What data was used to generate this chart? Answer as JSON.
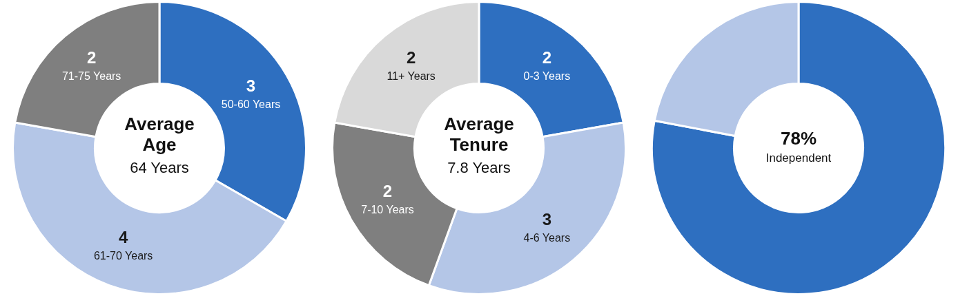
{
  "chart_data": [
    {
      "type": "donut",
      "categories": [
        "50-60 Years",
        "61-70 Years",
        "71-75 Years"
      ],
      "values": [
        3,
        4,
        2
      ],
      "colors": [
        "#2e6fc0",
        "#b4c6e7",
        "#7f7f7f"
      ],
      "data_labels": true,
      "annotations": [
        "Average Age",
        "64 Years"
      ]
    },
    {
      "type": "donut",
      "categories": [
        "0-3 Years",
        "4-6 Years",
        "7-10 Years",
        "11+ Years"
      ],
      "values": [
        2,
        3,
        2,
        2
      ],
      "colors": [
        "#2e6fc0",
        "#b4c6e7",
        "#7f7f7f",
        "#d9d9d9"
      ],
      "data_labels": true,
      "annotations": [
        "Average Tenure",
        "7.8 Years"
      ]
    },
    {
      "type": "donut",
      "categories": [
        null,
        null
      ],
      "values": [
        78,
        22
      ],
      "colors": [
        "#2e6fc0",
        "#b4c6e7"
      ],
      "annotations": [
        "78%",
        "Independent"
      ]
    }
  ]
}
